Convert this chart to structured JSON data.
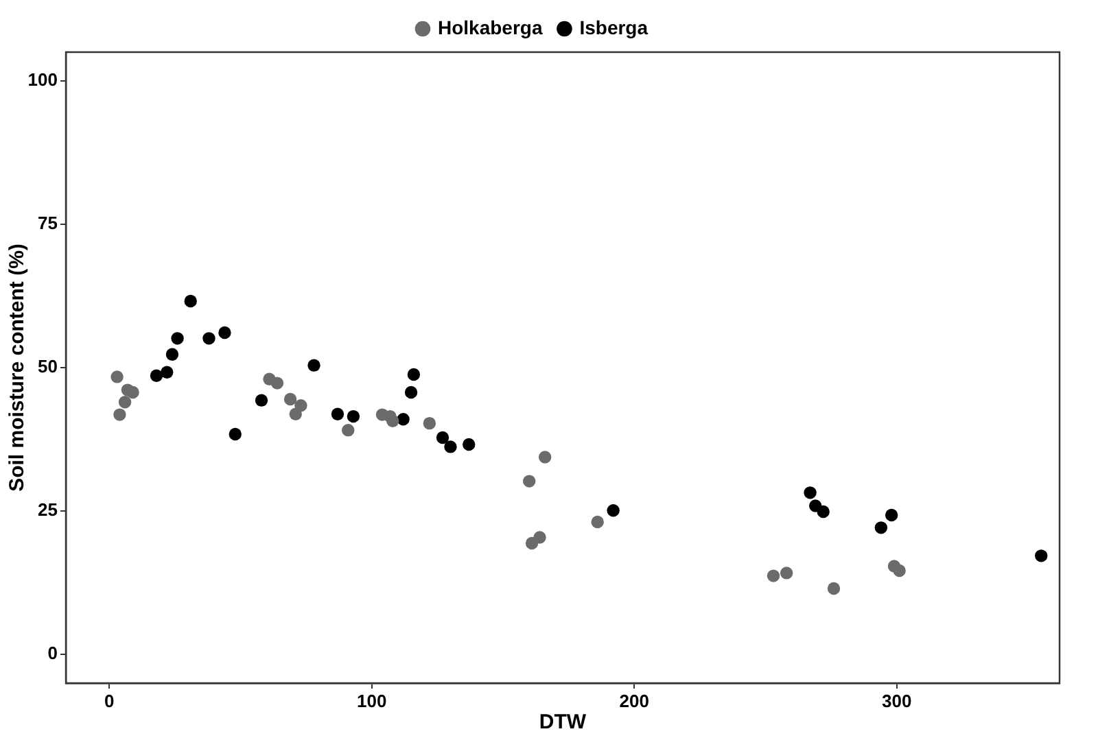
{
  "chart_data": {
    "type": "scatter",
    "xlabel": "DTW",
    "ylabel": "Soil moisture content (%)",
    "xlim": [
      -16.5,
      362
    ],
    "ylim": [
      -5,
      105
    ],
    "xticks": [
      0,
      100,
      200,
      300
    ],
    "yticks": [
      0,
      25,
      50,
      75,
      100
    ],
    "grid": false,
    "legend": "top",
    "marker": "circle",
    "series": [
      {
        "name": "Holkaberga",
        "color": "#6b6b6b",
        "x": [
          3,
          4,
          6,
          7,
          9,
          61,
          64,
          69,
          71,
          73,
          91,
          104,
          107,
          108,
          122,
          160,
          166,
          161,
          164,
          186,
          253,
          258,
          276,
          299,
          301
        ],
        "values": [
          48.4,
          41.8,
          44.0,
          46.1,
          45.7,
          48.0,
          47.3,
          44.5,
          41.9,
          43.4,
          39.1,
          41.8,
          41.5,
          40.7,
          40.3,
          30.2,
          34.4,
          19.4,
          20.4,
          23.1,
          13.7,
          14.2,
          11.5,
          15.4,
          14.6
        ]
      },
      {
        "name": "Isberga",
        "color": "#000000",
        "x": [
          18,
          22,
          24,
          26,
          31,
          38,
          44,
          48,
          58,
          78,
          87,
          93,
          112,
          115,
          116,
          127,
          130,
          137,
          192,
          267,
          269,
          272,
          294,
          298,
          355
        ],
        "values": [
          48.6,
          49.2,
          52.3,
          55.1,
          61.6,
          55.1,
          56.1,
          38.4,
          44.3,
          50.4,
          41.9,
          41.5,
          41.0,
          45.7,
          48.8,
          37.8,
          36.2,
          36.6,
          25.1,
          28.2,
          25.9,
          24.9,
          22.1,
          24.3,
          17.2
        ]
      }
    ]
  }
}
